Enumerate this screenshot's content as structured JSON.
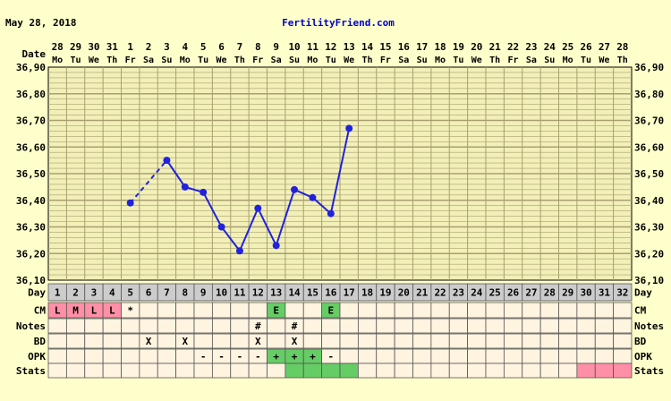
{
  "header": {
    "date": "May 28, 2018",
    "site": "FertilityFriend.com"
  },
  "row_labels": {
    "date": "Date",
    "day": "Day",
    "cm": "CM",
    "notes": "Notes",
    "bd": "BD",
    "opk": "OPK",
    "stats": "Stats"
  },
  "chart_data": {
    "type": "line",
    "dates": [
      "28",
      "29",
      "30",
      "31",
      "1",
      "2",
      "3",
      "4",
      "5",
      "6",
      "7",
      "8",
      "9",
      "10",
      "11",
      "12",
      "13",
      "14",
      "15",
      "16",
      "17",
      "18",
      "19",
      "20",
      "21",
      "22",
      "23",
      "24",
      "25",
      "26",
      "27",
      "28"
    ],
    "weekdays": [
      "Mo",
      "Tu",
      "We",
      "Th",
      "Fr",
      "Sa",
      "Su",
      "Mo",
      "Tu",
      "We",
      "Th",
      "Fr",
      "Sa",
      "Su",
      "Mo",
      "Tu",
      "We",
      "Th",
      "Fr",
      "Sa",
      "Su",
      "Mo",
      "Tu",
      "We",
      "Th",
      "Fr",
      "Sa",
      "Su",
      "Mo",
      "Tu",
      "We",
      "Th"
    ],
    "cycle_days": [
      "1",
      "2",
      "3",
      "4",
      "5",
      "6",
      "7",
      "8",
      "9",
      "10",
      "11",
      "12",
      "13",
      "14",
      "15",
      "16",
      "17",
      "18",
      "19",
      "20",
      "21",
      "22",
      "23",
      "24",
      "25",
      "26",
      "27",
      "28",
      "29",
      "30",
      "31",
      "32"
    ],
    "y_ticks": [
      "36,90",
      "36,80",
      "36,70",
      "36,60",
      "36,50",
      "36,40",
      "36,30",
      "36,20",
      "36,10"
    ],
    "ylim": [
      36.1,
      36.9
    ],
    "temperatures": [
      {
        "day": 5,
        "temp": 36.39
      },
      {
        "day": 7,
        "temp": 36.55
      },
      {
        "day": 8,
        "temp": 36.45
      },
      {
        "day": 9,
        "temp": 36.43
      },
      {
        "day": 10,
        "temp": 36.3
      },
      {
        "day": 11,
        "temp": 36.21
      },
      {
        "day": 12,
        "temp": 36.37
      },
      {
        "day": 13,
        "temp": 36.23
      },
      {
        "day": 14,
        "temp": 36.44
      },
      {
        "day": 15,
        "temp": 36.41
      },
      {
        "day": 16,
        "temp": 36.35
      },
      {
        "day": 17,
        "temp": 36.67
      }
    ],
    "dashed_segment_days": [
      [
        5,
        7
      ]
    ],
    "cm": [
      {
        "day": 1,
        "value": "L",
        "color": "#ff8fa6"
      },
      {
        "day": 2,
        "value": "M",
        "color": "#ff8fa6"
      },
      {
        "day": 3,
        "value": "L",
        "color": "#ff8fa6"
      },
      {
        "day": 4,
        "value": "L",
        "color": "#ff8fa6"
      },
      {
        "day": 5,
        "value": "*",
        "color": ""
      },
      {
        "day": 13,
        "value": "E",
        "color": "#66cc66"
      },
      {
        "day": 16,
        "value": "E",
        "color": "#66cc66"
      }
    ],
    "notes": [
      {
        "day": 12,
        "value": "#"
      },
      {
        "day": 14,
        "value": "#"
      }
    ],
    "bd": [
      {
        "day": 6,
        "value": "X"
      },
      {
        "day": 8,
        "value": "X"
      },
      {
        "day": 12,
        "value": "X"
      },
      {
        "day": 14,
        "value": "X"
      }
    ],
    "opk": [
      {
        "day": 9,
        "value": "-",
        "color": ""
      },
      {
        "day": 10,
        "value": "-",
        "color": ""
      },
      {
        "day": 11,
        "value": "-",
        "color": ""
      },
      {
        "day": 12,
        "value": "-",
        "color": ""
      },
      {
        "day": 13,
        "value": "+",
        "color": "#66cc66"
      },
      {
        "day": 14,
        "value": "+",
        "color": "#66cc66"
      },
      {
        "day": 15,
        "value": "+",
        "color": "#66cc66"
      },
      {
        "day": 16,
        "value": "-",
        "color": ""
      }
    ],
    "stats": [
      {
        "day": 14,
        "color": "#66cc66"
      },
      {
        "day": 15,
        "color": "#66cc66"
      },
      {
        "day": 16,
        "color": "#66cc66"
      },
      {
        "day": 17,
        "color": "#66cc66"
      },
      {
        "day": 30,
        "color": "#ff8fa6"
      },
      {
        "day": 31,
        "color": "#ff8fa6"
      },
      {
        "day": 32,
        "color": "#ff8fa6"
      }
    ],
    "colors": {
      "line": "#2222dd",
      "grid": "#a89f70",
      "plot_bg": "#f2f0b8",
      "day_row_bg": "#cccccc",
      "cell_bg": "#fff4e0"
    }
  }
}
